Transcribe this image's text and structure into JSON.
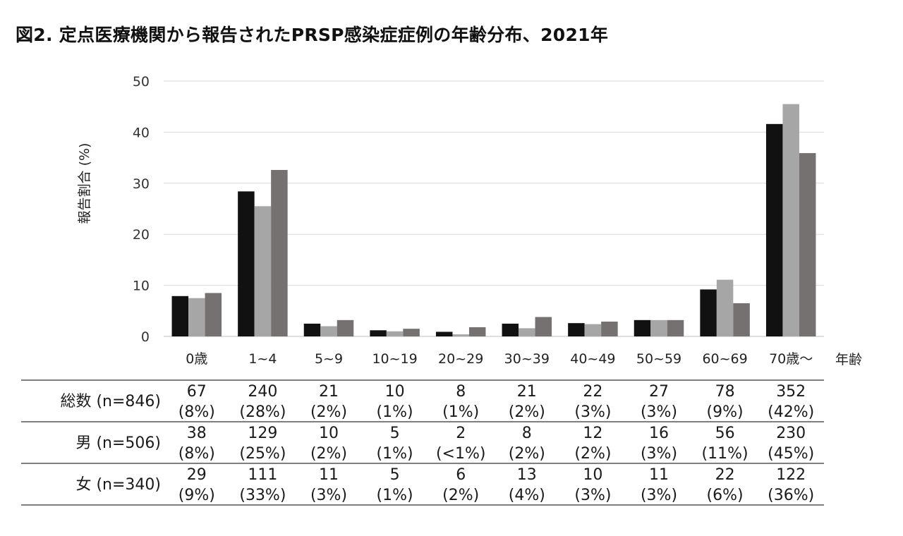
{
  "title": "図2.  定点医療機関から報告されたPRSP感染症症例の年齢分布、2021年",
  "chart_data": {
    "type": "bar",
    "ylabel": "報告割合 (%)",
    "xlabel": "年齢",
    "ylim": [
      0,
      50
    ],
    "yticks": [
      0,
      10,
      20,
      30,
      40,
      50
    ],
    "grid": true,
    "categories": [
      "0歳",
      "1~4",
      "5~9",
      "10~19",
      "20~29",
      "30~39",
      "40~49",
      "50~59",
      "60~69",
      "70歳～"
    ],
    "series": [
      {
        "name": "総数",
        "color": "#111111",
        "values": [
          7.9,
          28.4,
          2.5,
          1.2,
          0.9,
          2.5,
          2.6,
          3.2,
          9.2,
          41.6
        ]
      },
      {
        "name": "男",
        "color": "#a6a6a6",
        "values": [
          7.5,
          25.5,
          2.0,
          1.0,
          0.4,
          1.6,
          2.4,
          3.2,
          11.1,
          45.5
        ]
      },
      {
        "name": "女",
        "color": "#767171",
        "values": [
          8.5,
          32.6,
          3.2,
          1.5,
          1.8,
          3.8,
          2.9,
          3.2,
          6.5,
          35.9
        ]
      }
    ]
  },
  "table": {
    "rows": [
      {
        "label": "総数 (n=846)",
        "counts": [
          "67",
          "240",
          "21",
          "10",
          "8",
          "21",
          "22",
          "27",
          "78",
          "352"
        ],
        "pcts": [
          "(8%)",
          "(28%)",
          "(2%)",
          "(1%)",
          "(1%)",
          "(2%)",
          "(3%)",
          "(3%)",
          "(9%)",
          "(42%)"
        ]
      },
      {
        "label": "男 (n=506)",
        "counts": [
          "38",
          "129",
          "10",
          "5",
          "2",
          "8",
          "12",
          "16",
          "56",
          "230"
        ],
        "pcts": [
          "(8%)",
          "(25%)",
          "(2%)",
          "(1%)",
          "(<1%)",
          "(2%)",
          "(2%)",
          "(3%)",
          "(11%)",
          "(45%)"
        ]
      },
      {
        "label": "女 (n=340)",
        "counts": [
          "29",
          "111",
          "11",
          "5",
          "6",
          "13",
          "10",
          "11",
          "22",
          "122"
        ],
        "pcts": [
          "(9%)",
          "(33%)",
          "(3%)",
          "(1%)",
          "(2%)",
          "(4%)",
          "(3%)",
          "(3%)",
          "(6%)",
          "(36%)"
        ]
      }
    ]
  }
}
